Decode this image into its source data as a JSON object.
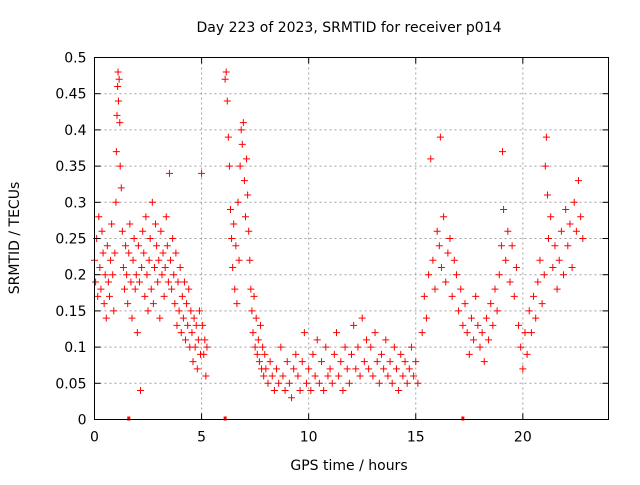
{
  "chart_data": {
    "type": "scatter",
    "title": "Day 223 of 2023, SRMTID for receiver p014",
    "xlabel": "GPS time / hours",
    "ylabel": "SRMTID / TECUs",
    "xlim": [
      0,
      24
    ],
    "ylim": [
      0,
      0.5
    ],
    "x_ticks": [
      0,
      5,
      10,
      15,
      20
    ],
    "x_tick_labels": [
      "0",
      "5",
      "10",
      "15",
      "20"
    ],
    "y_ticks": [
      0,
      0.05,
      0.1,
      0.15,
      0.2,
      0.25,
      0.3,
      0.35,
      0.4,
      0.45,
      0.5
    ],
    "y_tick_labels": [
      "0",
      "0.05",
      "0.1",
      "0.15",
      "0.2",
      "0.25",
      "0.3",
      "0.35",
      "0.4",
      "0.45",
      "0.5"
    ],
    "grid": true,
    "marker": "plus",
    "color": "#ff0000",
    "series": [
      {
        "name": "SRMTID",
        "points": [
          [
            0.0,
            0.22
          ],
          [
            0.05,
            0.19
          ],
          [
            0.1,
            0.25
          ],
          [
            0.15,
            0.17
          ],
          [
            0.2,
            0.28
          ],
          [
            0.25,
            0.21
          ],
          [
            0.3,
            0.18
          ],
          [
            0.35,
            0.26
          ],
          [
            0.4,
            0.23
          ],
          [
            0.45,
            0.16
          ],
          [
            0.5,
            0.2
          ],
          [
            0.55,
            0.14
          ],
          [
            0.6,
            0.24
          ],
          [
            0.65,
            0.19
          ],
          [
            0.7,
            0.17
          ],
          [
            0.75,
            0.22
          ],
          [
            0.8,
            0.27
          ],
          [
            0.85,
            0.2
          ],
          [
            0.9,
            0.15
          ],
          [
            0.95,
            0.23
          ],
          [
            1.0,
            0.3
          ],
          [
            1.02,
            0.37
          ],
          [
            1.05,
            0.42
          ],
          [
            1.08,
            0.46
          ],
          [
            1.1,
            0.48
          ],
          [
            1.12,
            0.44
          ],
          [
            1.15,
            0.47
          ],
          [
            1.18,
            0.41
          ],
          [
            1.2,
            0.35
          ],
          [
            1.25,
            0.32
          ],
          [
            1.3,
            0.26
          ],
          [
            1.35,
            0.21
          ],
          [
            1.4,
            0.18
          ],
          [
            1.45,
            0.24
          ],
          [
            1.5,
            0.2
          ],
          [
            1.55,
            0.16
          ],
          [
            1.6,
            0.23
          ],
          [
            1.65,
            0.27
          ],
          [
            1.7,
            0.19
          ],
          [
            1.75,
            0.14
          ],
          [
            1.8,
            0.22
          ],
          [
            1.85,
            0.25
          ],
          [
            1.9,
            0.18
          ],
          [
            1.95,
            0.2
          ],
          [
            2.0,
            0.12
          ],
          [
            2.05,
            0.24
          ],
          [
            2.1,
            0.19
          ],
          [
            2.15,
            0.04
          ],
          [
            2.2,
            0.21
          ],
          [
            2.25,
            0.26
          ],
          [
            2.3,
            0.23
          ],
          [
            2.35,
            0.17
          ],
          [
            2.4,
            0.28
          ],
          [
            2.45,
            0.2
          ],
          [
            2.5,
            0.15
          ],
          [
            2.55,
            0.22
          ],
          [
            2.6,
            0.25
          ],
          [
            2.65,
            0.18
          ],
          [
            2.7,
            0.3
          ],
          [
            2.75,
            0.16
          ],
          [
            2.8,
            0.21
          ],
          [
            2.85,
            0.27
          ],
          [
            2.9,
            0.24
          ],
          [
            2.95,
            0.19
          ],
          [
            3.0,
            0.22
          ],
          [
            3.05,
            0.14
          ],
          [
            3.1,
            0.26
          ],
          [
            3.15,
            0.2
          ],
          [
            3.2,
            0.23
          ],
          [
            3.25,
            0.17
          ],
          [
            3.3,
            0.21
          ],
          [
            3.35,
            0.28
          ],
          [
            3.4,
            0.24
          ],
          [
            3.45,
            0.19
          ],
          [
            3.5,
            0.34
          ],
          [
            3.55,
            0.22
          ],
          [
            3.6,
            0.18
          ],
          [
            3.65,
            0.25
          ],
          [
            3.7,
            0.2
          ],
          [
            3.75,
            0.16
          ],
          [
            3.8,
            0.23
          ],
          [
            3.85,
            0.13
          ],
          [
            3.9,
            0.19
          ],
          [
            3.95,
            0.15
          ],
          [
            4.0,
            0.21
          ],
          [
            4.05,
            0.12
          ],
          [
            4.1,
            0.17
          ],
          [
            4.15,
            0.14
          ],
          [
            4.2,
            0.19
          ],
          [
            4.25,
            0.11
          ],
          [
            4.3,
            0.16
          ],
          [
            4.35,
            0.13
          ],
          [
            4.4,
            0.18
          ],
          [
            4.45,
            0.1
          ],
          [
            4.5,
            0.15
          ],
          [
            4.55,
            0.12
          ],
          [
            4.6,
            0.08
          ],
          [
            4.65,
            0.14
          ],
          [
            4.7,
            0.1
          ],
          [
            4.75,
            0.13
          ],
          [
            4.8,
            0.07
          ],
          [
            4.85,
            0.11
          ],
          [
            4.9,
            0.15
          ],
          [
            4.95,
            0.09
          ],
          [
            5.0,
            0.34
          ],
          [
            5.05,
            0.13
          ],
          [
            5.1,
            0.09
          ],
          [
            5.15,
            0.11
          ],
          [
            5.2,
            0.06
          ],
          [
            5.25,
            0.1
          ],
          [
            6.1,
            0.47
          ],
          [
            6.15,
            0.48
          ],
          [
            6.2,
            0.44
          ],
          [
            6.25,
            0.39
          ],
          [
            6.3,
            0.35
          ],
          [
            6.35,
            0.29
          ],
          [
            6.4,
            0.25
          ],
          [
            6.45,
            0.21
          ],
          [
            6.5,
            0.27
          ],
          [
            6.55,
            0.18
          ],
          [
            6.6,
            0.24
          ],
          [
            6.65,
            0.16
          ],
          [
            6.7,
            0.3
          ],
          [
            6.75,
            0.22
          ],
          [
            6.8,
            0.35
          ],
          [
            6.85,
            0.4
          ],
          [
            6.9,
            0.38
          ],
          [
            6.95,
            0.41
          ],
          [
            7.0,
            0.33
          ],
          [
            7.05,
            0.28
          ],
          [
            7.1,
            0.36
          ],
          [
            7.15,
            0.31
          ],
          [
            7.2,
            0.26
          ],
          [
            7.25,
            0.22
          ],
          [
            7.3,
            0.18
          ],
          [
            7.35,
            0.15
          ],
          [
            7.4,
            0.12
          ],
          [
            7.45,
            0.17
          ],
          [
            7.5,
            0.1
          ],
          [
            7.55,
            0.14
          ],
          [
            7.6,
            0.09
          ],
          [
            7.65,
            0.11
          ],
          [
            7.7,
            0.08
          ],
          [
            7.75,
            0.13
          ],
          [
            7.8,
            0.07
          ],
          [
            7.85,
            0.1
          ],
          [
            7.9,
            0.06
          ],
          [
            7.95,
            0.09
          ],
          [
            8.0,
            0.07
          ],
          [
            8.1,
            0.05
          ],
          [
            8.2,
            0.08
          ],
          [
            8.3,
            0.06
          ],
          [
            8.4,
            0.04
          ],
          [
            8.5,
            0.07
          ],
          [
            8.6,
            0.05
          ],
          [
            8.7,
            0.1
          ],
          [
            8.8,
            0.06
          ],
          [
            8.9,
            0.04
          ],
          [
            9.0,
            0.08
          ],
          [
            9.1,
            0.05
          ],
          [
            9.2,
            0.03
          ],
          [
            9.3,
            0.07
          ],
          [
            9.4,
            0.09
          ],
          [
            9.5,
            0.06
          ],
          [
            9.6,
            0.04
          ],
          [
            9.7,
            0.08
          ],
          [
            9.8,
            0.12
          ],
          [
            9.9,
            0.05
          ],
          [
            10.0,
            0.07
          ],
          [
            10.1,
            0.04
          ],
          [
            10.2,
            0.09
          ],
          [
            10.3,
            0.06
          ],
          [
            10.4,
            0.11
          ],
          [
            10.5,
            0.05
          ],
          [
            10.6,
            0.08
          ],
          [
            10.7,
            0.04
          ],
          [
            10.8,
            0.1
          ],
          [
            10.9,
            0.06
          ],
          [
            11.0,
            0.07
          ],
          [
            11.1,
            0.05
          ],
          [
            11.2,
            0.09
          ],
          [
            11.3,
            0.12
          ],
          [
            11.4,
            0.06
          ],
          [
            11.5,
            0.08
          ],
          [
            11.6,
            0.04
          ],
          [
            11.7,
            0.1
          ],
          [
            11.8,
            0.07
          ],
          [
            11.9,
            0.05
          ],
          [
            12.0,
            0.09
          ],
          [
            12.1,
            0.13
          ],
          [
            12.2,
            0.07
          ],
          [
            12.3,
            0.1
          ],
          [
            12.4,
            0.06
          ],
          [
            12.5,
            0.14
          ],
          [
            12.6,
            0.08
          ],
          [
            12.7,
            0.11
          ],
          [
            12.8,
            0.07
          ],
          [
            12.9,
            0.1
          ],
          [
            13.0,
            0.06
          ],
          [
            13.1,
            0.12
          ],
          [
            13.2,
            0.08
          ],
          [
            13.3,
            0.05
          ],
          [
            13.4,
            0.09
          ],
          [
            13.5,
            0.07
          ],
          [
            13.6,
            0.11
          ],
          [
            13.7,
            0.06
          ],
          [
            13.8,
            0.08
          ],
          [
            13.9,
            0.05
          ],
          [
            14.0,
            0.1
          ],
          [
            14.1,
            0.07
          ],
          [
            14.2,
            0.04
          ],
          [
            14.3,
            0.09
          ],
          [
            14.4,
            0.06
          ],
          [
            14.5,
            0.08
          ],
          [
            14.6,
            0.05
          ],
          [
            14.7,
            0.07
          ],
          [
            14.8,
            0.1
          ],
          [
            14.9,
            0.06
          ],
          [
            15.0,
            0.08
          ],
          [
            15.1,
            0.05
          ],
          [
            15.3,
            0.12
          ],
          [
            15.4,
            0.17
          ],
          [
            15.5,
            0.14
          ],
          [
            15.6,
            0.2
          ],
          [
            15.7,
            0.36
          ],
          [
            15.8,
            0.22
          ],
          [
            15.9,
            0.18
          ],
          [
            16.0,
            0.26
          ],
          [
            16.1,
            0.24
          ],
          [
            16.15,
            0.39
          ],
          [
            16.2,
            0.21
          ],
          [
            16.3,
            0.28
          ],
          [
            16.4,
            0.19
          ],
          [
            16.5,
            0.23
          ],
          [
            16.6,
            0.25
          ],
          [
            16.7,
            0.17
          ],
          [
            16.8,
            0.22
          ],
          [
            16.9,
            0.2
          ],
          [
            17.0,
            0.15
          ],
          [
            17.1,
            0.18
          ],
          [
            17.2,
            0.13
          ],
          [
            17.3,
            0.16
          ],
          [
            17.4,
            0.12
          ],
          [
            17.5,
            0.09
          ],
          [
            17.6,
            0.14
          ],
          [
            17.7,
            0.11
          ],
          [
            17.8,
            0.17
          ],
          [
            17.9,
            0.13
          ],
          [
            18.0,
            0.1
          ],
          [
            18.1,
            0.12
          ],
          [
            18.2,
            0.08
          ],
          [
            18.3,
            0.14
          ],
          [
            18.4,
            0.11
          ],
          [
            18.5,
            0.16
          ],
          [
            18.6,
            0.13
          ],
          [
            18.7,
            0.18
          ],
          [
            18.8,
            0.15
          ],
          [
            18.9,
            0.2
          ],
          [
            19.0,
            0.24
          ],
          [
            19.05,
            0.37
          ],
          [
            19.1,
            0.29
          ],
          [
            19.2,
            0.22
          ],
          [
            19.3,
            0.26
          ],
          [
            19.4,
            0.19
          ],
          [
            19.5,
            0.24
          ],
          [
            19.6,
            0.17
          ],
          [
            19.7,
            0.21
          ],
          [
            19.8,
            0.13
          ],
          [
            19.9,
            0.1
          ],
          [
            20.0,
            0.07
          ],
          [
            20.1,
            0.12
          ],
          [
            20.2,
            0.09
          ],
          [
            20.3,
            0.15
          ],
          [
            20.4,
            0.12
          ],
          [
            20.5,
            0.17
          ],
          [
            20.6,
            0.14
          ],
          [
            20.7,
            0.19
          ],
          [
            20.8,
            0.22
          ],
          [
            20.9,
            0.16
          ],
          [
            21.0,
            0.2
          ],
          [
            21.05,
            0.35
          ],
          [
            21.1,
            0.39
          ],
          [
            21.15,
            0.31
          ],
          [
            21.2,
            0.25
          ],
          [
            21.3,
            0.28
          ],
          [
            21.4,
            0.21
          ],
          [
            21.5,
            0.24
          ],
          [
            21.6,
            0.18
          ],
          [
            21.7,
            0.22
          ],
          [
            21.8,
            0.26
          ],
          [
            21.9,
            0.2
          ],
          [
            22.0,
            0.29
          ],
          [
            22.1,
            0.24
          ],
          [
            22.2,
            0.27
          ],
          [
            22.3,
            0.21
          ],
          [
            22.4,
            0.3
          ],
          [
            22.5,
            0.26
          ],
          [
            22.6,
            0.33
          ],
          [
            22.7,
            0.28
          ],
          [
            22.8,
            0.25
          ]
        ]
      }
    ],
    "markers_on_axis": [
      1.6,
      6.1,
      17.2
    ]
  }
}
